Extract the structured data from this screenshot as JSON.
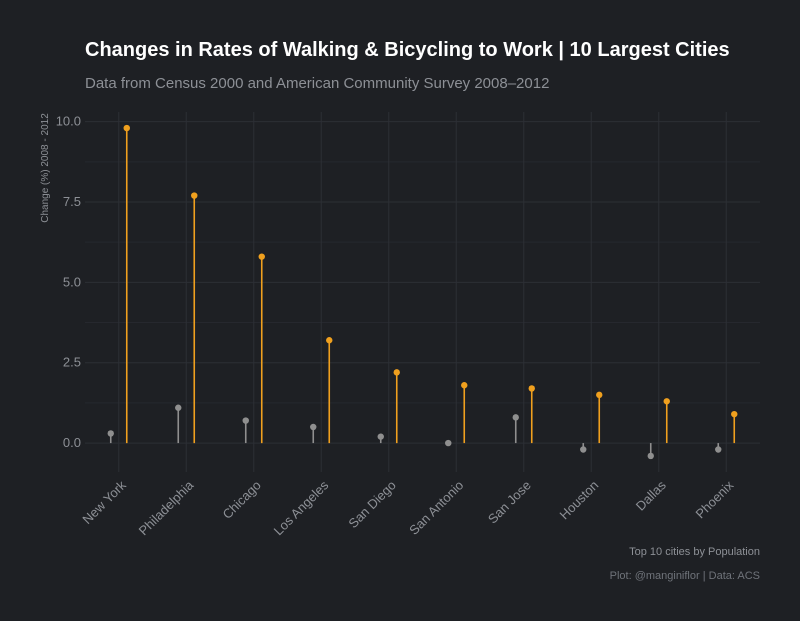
{
  "colors": {
    "background": "#1e2024",
    "highlight": "#f0a01e",
    "muted": "#8f8f8f",
    "grid": "#2c2f35",
    "text": "#8d9096",
    "title": "#ffffff"
  },
  "chart_data": {
    "type": "lollipop",
    "title": "Changes in Rates of Walking & Bicycling to Work | 10 Largest Cities",
    "subtitle": "Data from Census 2000 and American Community Survey 2008–2012",
    "xlabel": "Top 10 cities by Population",
    "ylabel": "Change (%) 2008 - 2012",
    "caption": "Plot: @manginiflor | Data: ACS",
    "ylim": [
      -0.9,
      10.3
    ],
    "yticks": [
      "10.0",
      "7.5",
      "5.0",
      "2.5",
      "0.0"
    ],
    "ytick_values": [
      10,
      7.5,
      5,
      2.5,
      0
    ],
    "grid": true,
    "categories": [
      "New York",
      "Philadelphia",
      "Chicago",
      "Los Angeles",
      "San Diego",
      "San Antonio",
      "San Jose",
      "Houston",
      "Dallas",
      "Phoenix"
    ],
    "series": [
      {
        "color": "#8f8f8f",
        "values": [
          0.3,
          1.1,
          0.7,
          0.5,
          0.2,
          0.0,
          0.8,
          -0.2,
          -0.4,
          -0.2
        ]
      },
      {
        "color": "#f0a01e",
        "values": [
          9.8,
          7.7,
          5.8,
          3.2,
          2.2,
          1.8,
          1.7,
          1.5,
          1.3,
          0.9
        ]
      }
    ]
  }
}
